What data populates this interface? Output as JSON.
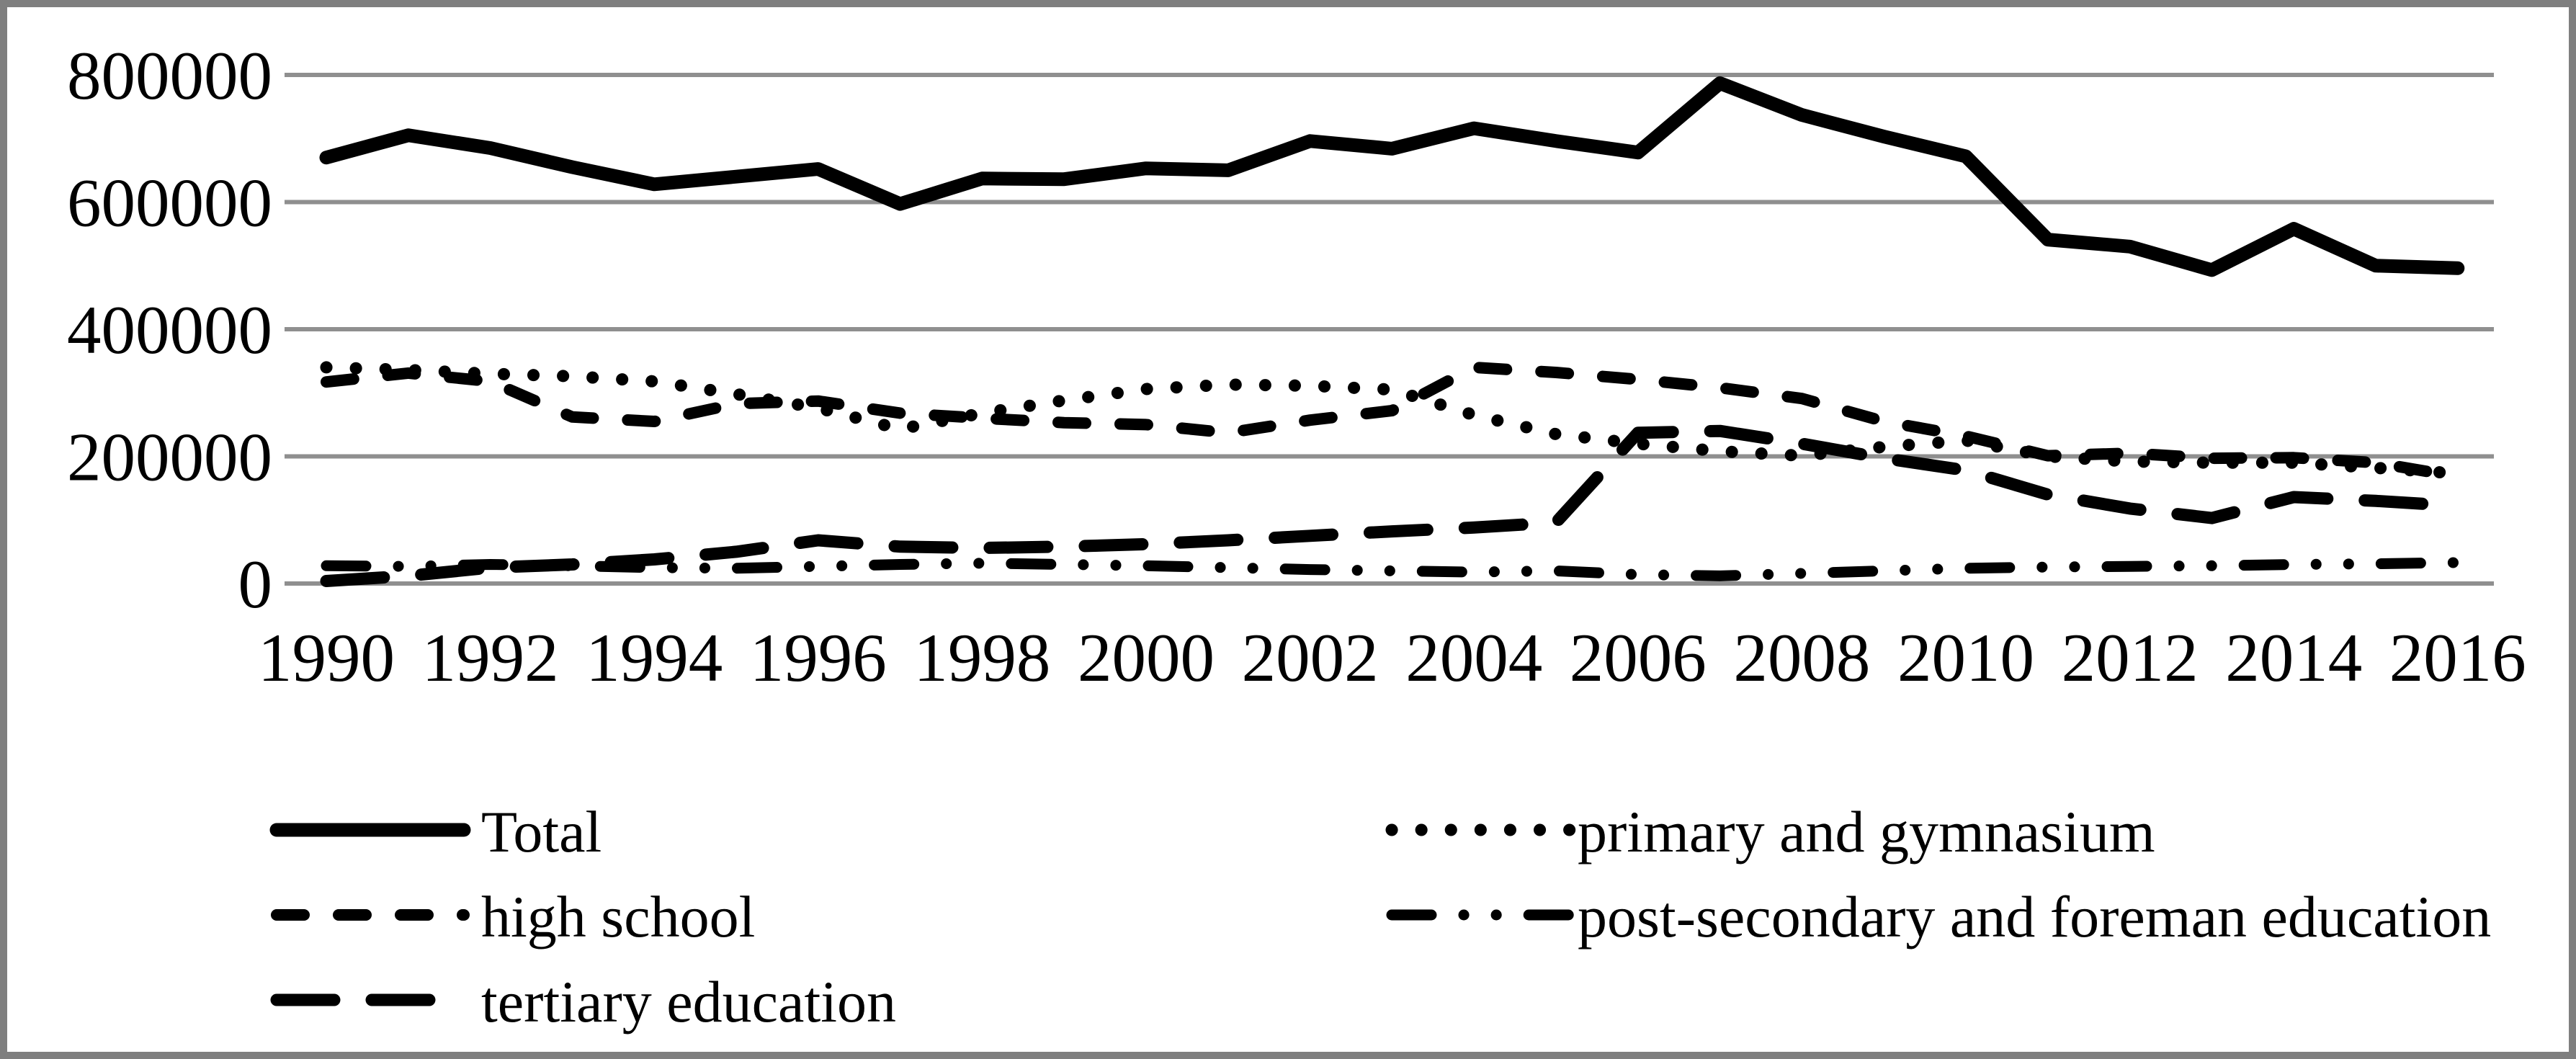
{
  "figure": {
    "background_color": "#ffffff",
    "border_color": "#7f7f7f",
    "gridline_color": "#8f8f8f",
    "line_color": "#000000",
    "title": ""
  },
  "chart_data": {
    "type": "line",
    "title": "",
    "xlabel": "",
    "ylabel": "",
    "x": [
      1990,
      1991,
      1992,
      1993,
      1994,
      1995,
      1996,
      1997,
      1998,
      1999,
      2000,
      2001,
      2002,
      2003,
      2004,
      2005,
      2006,
      2007,
      2008,
      2009,
      2010,
      2011,
      2012,
      2013,
      2014,
      2015,
      2016
    ],
    "x_tick_labels": [
      "1990",
      "1992",
      "1994",
      "1996",
      "1998",
      "2000",
      "2002",
      "2004",
      "2006",
      "2008",
      "2010",
      "2012",
      "2014",
      "2016"
    ],
    "y_ticks": [
      0,
      200000,
      400000,
      600000,
      800000
    ],
    "y_tick_labels": [
      "0",
      "200000",
      "400000",
      "600000",
      "800000"
    ],
    "ylim": [
      0,
      800000
    ],
    "grid": "horizontal",
    "legend_position": "bottom-two-columns",
    "series": [
      {
        "name": "Total",
        "style": "solid",
        "values": [
          670000,
          705000,
          685000,
          655000,
          628000,
          640000,
          652000,
          597000,
          637000,
          636000,
          653000,
          650000,
          696000,
          684000,
          716000,
          696000,
          678000,
          787000,
          737000,
          703000,
          672000,
          541000,
          530000,
          493000,
          558000,
          500000,
          496000
        ]
      },
      {
        "name": "primary and gymnasium",
        "style": "dotted",
        "values": [
          340000,
          336000,
          330000,
          326000,
          318000,
          298000,
          276000,
          243000,
          268000,
          288000,
          306000,
          313000,
          311000,
          305000,
          265000,
          235000,
          220000,
          208000,
          201000,
          215000,
          225000,
          200000,
          192000,
          190000,
          190000,
          182000,
          173000
        ]
      },
      {
        "name": "high school",
        "style": "dashed",
        "values": [
          317000,
          331000,
          318000,
          262000,
          255000,
          283000,
          287000,
          268000,
          260000,
          253000,
          250000,
          237000,
          257000,
          272000,
          340000,
          332000,
          321000,
          308000,
          291000,
          255000,
          232000,
          201000,
          205000,
          197000,
          198000,
          190000,
          168000
        ]
      },
      {
        "name": "post-secondary and foreman education",
        "style": "dash-dot-dot",
        "values": [
          28000,
          27000,
          30000,
          28000,
          25000,
          24000,
          27000,
          30000,
          32000,
          30000,
          28000,
          25000,
          22000,
          20000,
          18000,
          20000,
          14000,
          12000,
          16000,
          20000,
          24000,
          26000,
          27000,
          28000,
          30000,
          31000,
          33000
        ]
      },
      {
        "name": "tertiary education",
        "style": "long-dash",
        "values": [
          4000,
          12000,
          25000,
          30000,
          38000,
          50000,
          68000,
          58000,
          56000,
          58000,
          62000,
          68000,
          75000,
          82000,
          88000,
          96000,
          237000,
          240000,
          220000,
          197000,
          178000,
          140000,
          118000,
          103000,
          136000,
          130000,
          122000
        ]
      }
    ],
    "legend": {
      "columns": [
        {
          "items": [
            "Total",
            "high school",
            "tertiary education"
          ]
        },
        {
          "items": [
            "primary and gymnasium",
            "post-secondary and foreman education"
          ]
        }
      ]
    }
  }
}
